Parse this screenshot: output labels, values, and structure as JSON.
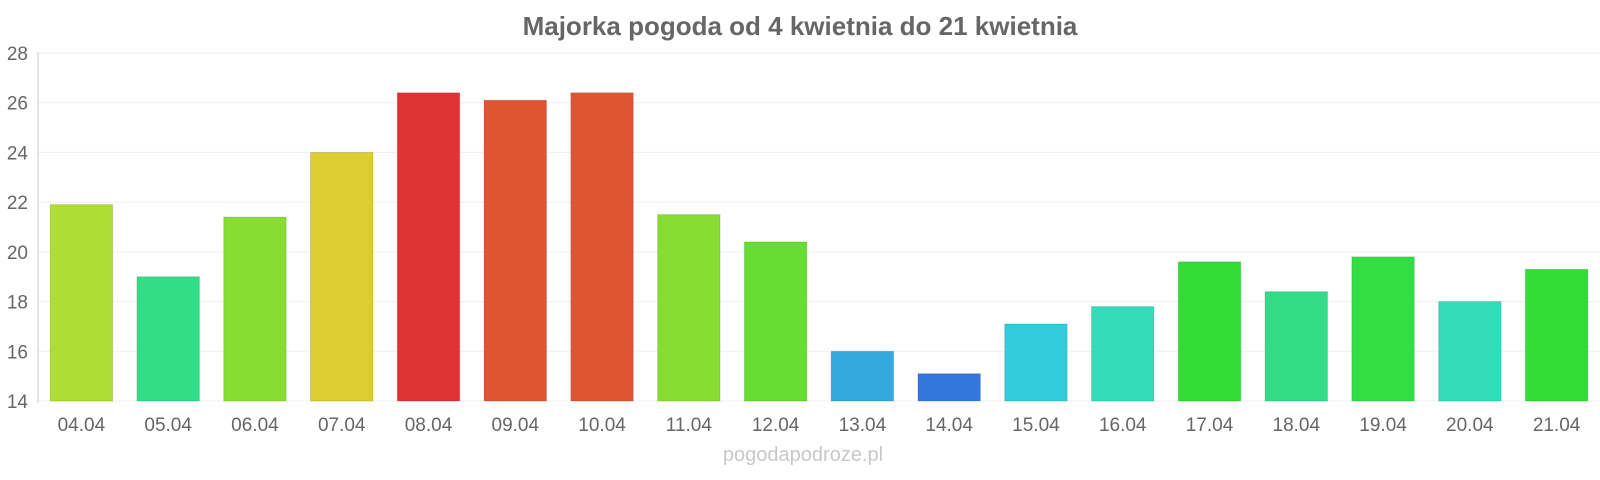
{
  "chart_data": {
    "type": "bar",
    "title": "Majorka pogoda od 4 kwietnia do 21 kwietnia",
    "xlabel": "",
    "ylabel": "",
    "categories": [
      "04.04",
      "05.04",
      "06.04",
      "07.04",
      "08.04",
      "09.04",
      "10.04",
      "11.04",
      "12.04",
      "13.04",
      "14.04",
      "15.04",
      "16.04",
      "17.04",
      "18.04",
      "19.04",
      "20.04",
      "21.04"
    ],
    "values": [
      21.9,
      19.0,
      21.4,
      24.0,
      26.4,
      26.1,
      26.4,
      21.5,
      20.4,
      16.0,
      15.1,
      17.1,
      17.8,
      19.6,
      18.4,
      19.8,
      18.0,
      19.3
    ],
    "colors": [
      "#aedd33",
      "#33dd88",
      "#88dd33",
      "#ddcc33",
      "#dd3333",
      "#dd5533",
      "#dd5533",
      "#88dd33",
      "#66dd33",
      "#33aadd",
      "#3377dd",
      "#33ccdd",
      "#33ddbb",
      "#33dd33",
      "#33dd88",
      "#33dd44",
      "#33ddbb",
      "#33dd33"
    ],
    "ylim": [
      14,
      28
    ],
    "yticks": [
      "14",
      "16",
      "18",
      "20",
      "22",
      "24",
      "26",
      "28"
    ],
    "grid": true,
    "legend": "none"
  },
  "footer": {
    "credit": "pogodapodroze.pl"
  }
}
